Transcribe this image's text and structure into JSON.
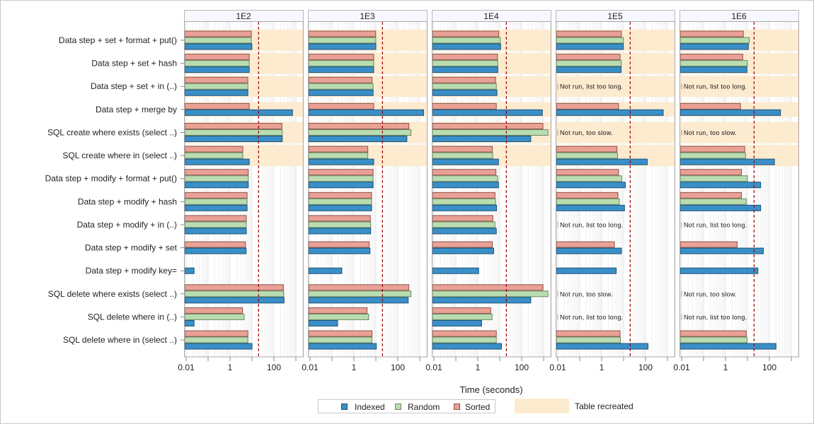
{
  "chart_data": {
    "type": "bar",
    "orientation": "horizontal",
    "x_scale": "log",
    "xlim": [
      0.008,
      2000
    ],
    "xticks": [
      "0.01",
      "1",
      "100"
    ],
    "xlabel": "Time (seconds)",
    "grid": true,
    "reference_line": 20,
    "categories": [
      "Data step + set + format + put()",
      "Data step + set + hash",
      "Data step + set + in (..)",
      "Data step + merge by",
      "SQL create where exists (select ..)",
      "SQL create where in (select ..)",
      "Data step + modify + format + put()",
      "Data step + modify + hash",
      "Data step + modify + in (..)",
      "Data step + modify + set",
      "Data step + modify key=",
      "SQL delete where exists (select ..)",
      "SQL delete where in (..)",
      "SQL delete where in (select ..)"
    ],
    "highlighted_categories": [
      0,
      1,
      2,
      3,
      4,
      5
    ],
    "highlight_label": "Table recreated",
    "highlight_color": "#fdebd0",
    "legend": {
      "placement": "bottom",
      "entries": [
        {
          "name": "Indexed",
          "color": "#3a8fc8"
        },
        {
          "name": "Random",
          "color": "#b9dcb0"
        },
        {
          "name": "Sorted",
          "color": "#e9a196"
        }
      ]
    },
    "panels": [
      {
        "title": "1E2",
        "series": [
          {
            "name": "Indexed",
            "values": [
              9.9,
              7.5,
              6.5,
              700,
              240,
              7.5,
              6.8,
              6,
              5.5,
              5.4,
              0.023,
              290,
              0.023,
              10
            ]
          },
          {
            "name": "Random",
            "values": [
              9.3,
              7.5,
              6.5,
              null,
              240,
              3.8,
              6.8,
              6,
              5.5,
              null,
              null,
              280,
              4.4,
              6.5
            ]
          },
          {
            "name": "Sorted",
            "values": [
              9.3,
              7.5,
              6.5,
              7.5,
              230,
              3.8,
              6.8,
              6,
              5.5,
              5.1,
              null,
              270,
              3.7,
              6.5
            ]
          }
        ],
        "annotations": []
      },
      {
        "title": "1E3",
        "series": [
          {
            "name": "Indexed",
            "values": [
              10,
              8,
              7.5,
              1500,
              260,
              8,
              7.5,
              6.4,
              5.8,
              5.4,
              0.28,
              300,
              0.18,
              10.5
            ]
          },
          {
            "name": "Random",
            "values": [
              10,
              8,
              7.5,
              null,
              400,
              4.3,
              7.5,
              6.4,
              5.8,
              null,
              null,
              400,
              4.7,
              6.7
            ]
          },
          {
            "name": "Sorted",
            "values": [
              9.8,
              8,
              6.7,
              8,
              320,
              4.3,
              7.5,
              6.4,
              5.6,
              5.0,
              null,
              320,
              4.0,
              6.7
            ]
          }
        ],
        "annotations": []
      },
      {
        "title": "1E4",
        "series": [
          {
            "name": "Indexed",
            "values": [
              11,
              8.2,
              7.5,
              880,
              260,
              8.8,
              8.8,
              7.2,
              7,
              5.3,
              1.1,
              260,
              1.5,
              12
            ]
          },
          {
            "name": "Random",
            "values": [
              10.5,
              8.2,
              7,
              null,
              1600,
              4.8,
              8.2,
              6.5,
              6.1,
              null,
              null,
              1600,
              4.5,
              7
            ]
          },
          {
            "name": "Sorted",
            "values": [
              9.1,
              7.9,
              6.5,
              7,
              930,
              4.6,
              6.7,
              6.1,
              4.9,
              4.6,
              null,
              930,
              3.9,
              7
            ]
          }
        ],
        "annotations": []
      },
      {
        "title": "1E5",
        "series": [
          {
            "name": "Indexed",
            "values": [
              9.8,
              7.7,
              null,
              640,
              null,
              120,
              12,
              11,
              null,
              8,
              4.6,
              null,
              null,
              130
            ]
          },
          {
            "name": "Random",
            "values": [
              9.8,
              7.9,
              null,
              null,
              null,
              5.3,
              8.2,
              6.4,
              null,
              null,
              null,
              null,
              null,
              7.2
            ]
          },
          {
            "name": "Sorted",
            "values": [
              7.9,
              6.9,
              null,
              5.9,
              null,
              5.0,
              5.9,
              5.5,
              null,
              3.8,
              null,
              null,
              null,
              6.9
            ]
          }
        ],
        "annotations": [
          {
            "category": 2,
            "text": "Not run, list too long."
          },
          {
            "category": 4,
            "text": "Not run, too slow."
          },
          {
            "category": 8,
            "text": "Not run, list too long."
          },
          {
            "category": 11,
            "text": "Not run, too slow."
          },
          {
            "category": 12,
            "text": "Not run, list too long."
          }
        ]
      },
      {
        "title": "1E6",
        "series": [
          {
            "name": "Indexed",
            "values": [
              11,
              9.5,
              null,
              320,
              null,
              170,
              40,
              40,
              null,
              53,
              30,
              null,
              null,
              200
            ]
          },
          {
            "name": "Random",
            "values": [
              12,
              10,
              null,
              null,
              null,
              8.2,
              10,
              8.8,
              null,
              null,
              null,
              null,
              null,
              9.6
            ]
          },
          {
            "name": "Sorted",
            "values": [
              6.5,
              6.1,
              null,
              4.8,
              null,
              7.5,
              5.3,
              5.3,
              null,
              3.4,
              null,
              null,
              null,
              8.8
            ]
          }
        ],
        "annotations": [
          {
            "category": 2,
            "text": "Not run, list too long."
          },
          {
            "category": 4,
            "text": "Not run, too slow."
          },
          {
            "category": 8,
            "text": "Not run, list too long."
          },
          {
            "category": 11,
            "text": "Not run, too slow."
          },
          {
            "category": 12,
            "text": "Not run, list too long."
          }
        ]
      }
    ],
    "colors": {
      "Indexed": "#3a8fc8",
      "Indexed_stroke": "#1d5478",
      "Random": "#b9dcb0",
      "Random_stroke": "#6b8a62",
      "Sorted": "#e9a196",
      "Sorted_stroke": "#8c5249",
      "reference_line": "#a00000"
    }
  }
}
